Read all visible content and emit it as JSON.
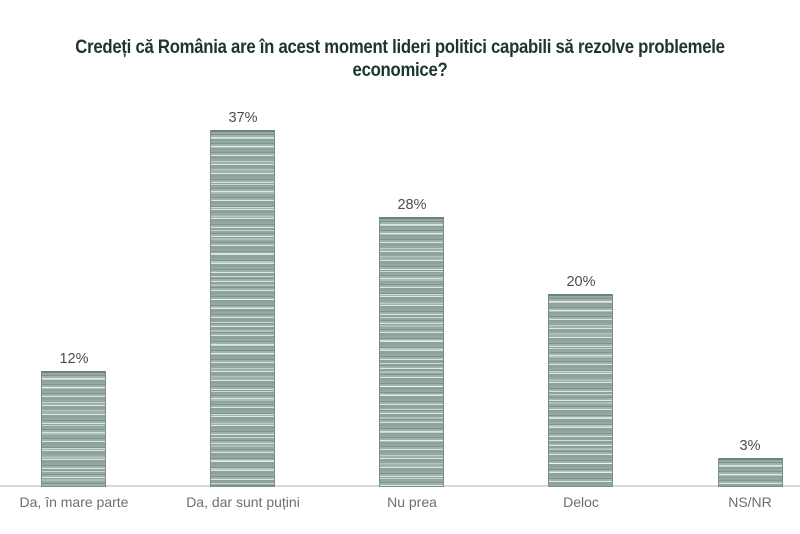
{
  "title": {
    "lines": [
      "Credeți că România are în acest moment lideri politici capabili să rezolve problemele",
      "economice?"
    ],
    "color": "#1e342e"
  },
  "chart_data": {
    "type": "bar",
    "title": "Credeți că România are în acest moment lideri politici capabili să rezolve problemele economice?",
    "categories": [
      "Da, în mare parte",
      "Da, dar sunt puțini",
      "Nu prea",
      "Deloc",
      "NS/NR"
    ],
    "values": [
      12,
      37,
      28,
      20,
      3
    ],
    "value_labels": [
      "12%",
      "37%",
      "28%",
      "20%",
      "3%"
    ],
    "xlabel": "",
    "ylabel": "",
    "ylim": [
      0,
      40
    ],
    "grid": false,
    "legend": false,
    "orientation": "vertical",
    "bar_fill_base": "#95a9a3",
    "bar_stripe_dark": "#7e938d",
    "bar_stripe_light": "#dde7e4",
    "bar_edge_color": "#7a8f89",
    "axis_line_color": "#d9d9d9",
    "value_label_color": "#4d4d4d",
    "category_label_color": "#6e6e6e",
    "title_color": "#1e342e",
    "background_color": "#ffffff"
  }
}
